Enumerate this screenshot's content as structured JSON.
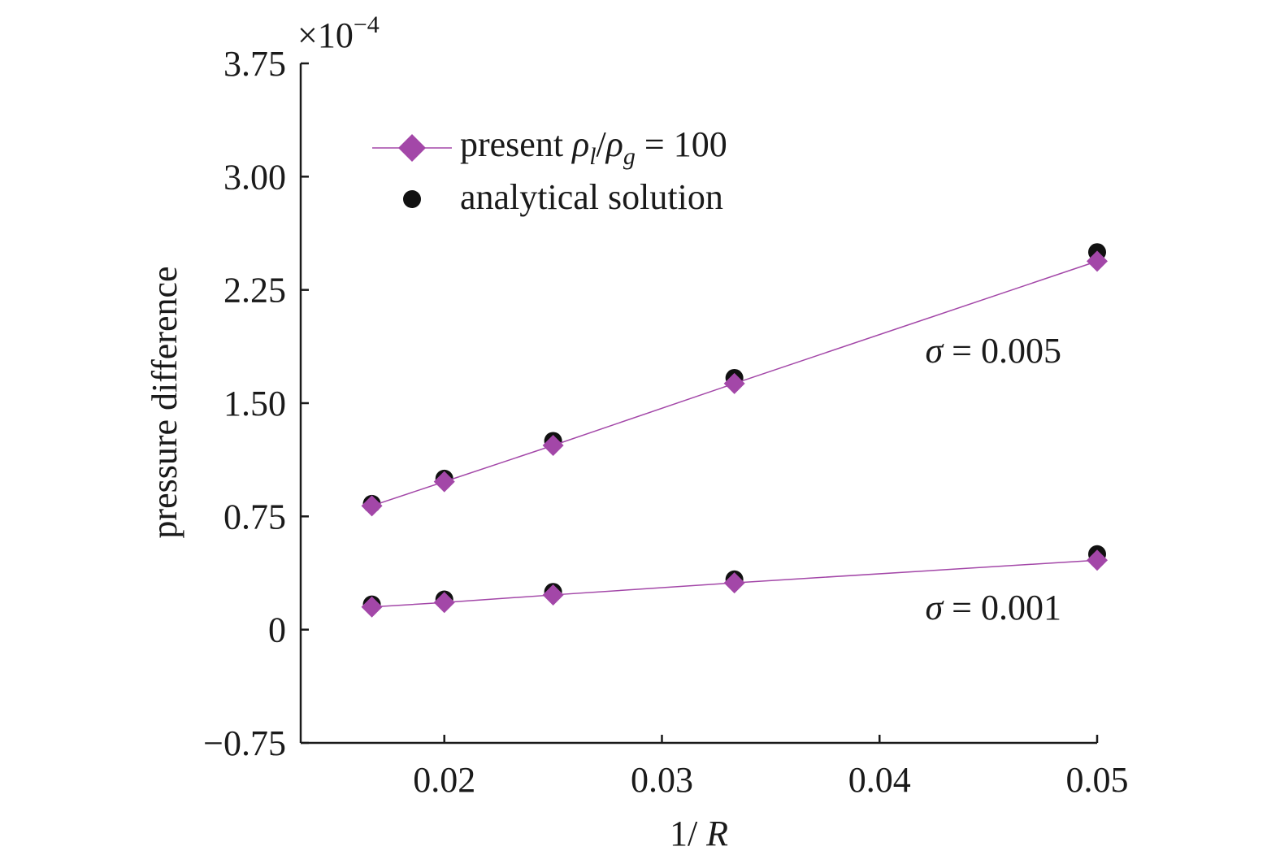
{
  "chart_data": {
    "type": "scatter",
    "xlabel": "1/R",
    "ylabel": "pressure difference",
    "y_multiplier": "×10",
    "y_multiplier_exp": "−4",
    "xlim": [
      0.0134,
      0.05
    ],
    "ylim": [
      -0.75,
      3.75
    ],
    "x_ticks": [
      {
        "value": 0.02,
        "label": "0.02"
      },
      {
        "value": 0.03,
        "label": "0.03"
      },
      {
        "value": 0.04,
        "label": "0.04"
      },
      {
        "value": 0.05,
        "label": "0.05"
      }
    ],
    "y_ticks": [
      {
        "value": -0.75,
        "label": "−0.75"
      },
      {
        "value": 0,
        "label": "0"
      },
      {
        "value": 0.75,
        "label": "0.75"
      },
      {
        "value": 1.5,
        "label": "1.50"
      },
      {
        "value": 2.25,
        "label": "2.25"
      },
      {
        "value": 3.0,
        "label": "3.00"
      },
      {
        "value": 3.75,
        "label": "3.75"
      }
    ],
    "series": [
      {
        "name": "present ρl/ρg = 100",
        "marker": "diamond",
        "line": true,
        "color": "#a347a8",
        "groups": [
          {
            "x": [
              0.01667,
              0.02,
              0.025,
              0.03333,
              0.05
            ],
            "y": [
              0.82,
              0.98,
              1.22,
              1.63,
              2.44
            ]
          },
          {
            "x": [
              0.01667,
              0.02,
              0.025,
              0.03333,
              0.05
            ],
            "y": [
              0.15,
              0.18,
              0.23,
              0.31,
              0.46
            ]
          }
        ]
      },
      {
        "name": "analytical solution",
        "marker": "circle",
        "line": false,
        "color": "#111111",
        "groups": [
          {
            "x": [
              0.01667,
              0.02,
              0.025,
              0.03333,
              0.05
            ],
            "y": [
              0.833,
              1.0,
              1.25,
              1.667,
              2.5
            ]
          },
          {
            "x": [
              0.01667,
              0.02,
              0.025,
              0.03333,
              0.05
            ],
            "y": [
              0.167,
              0.2,
              0.25,
              0.333,
              0.5
            ]
          }
        ]
      }
    ],
    "annotations": [
      {
        "text": "σ = 0.005",
        "x": 0.0421,
        "y": 1.85
      },
      {
        "text": "σ = 0.001",
        "x": 0.0421,
        "y": 0.15
      }
    ],
    "legend": {
      "placement": "top-left",
      "present_prefix": "present ",
      "present_rho": "ρ",
      "present_l": "l",
      "present_slash": "/",
      "present_g": "g",
      "present_suffix": " = 100",
      "analytical": "analytical solution"
    },
    "grid": false
  }
}
